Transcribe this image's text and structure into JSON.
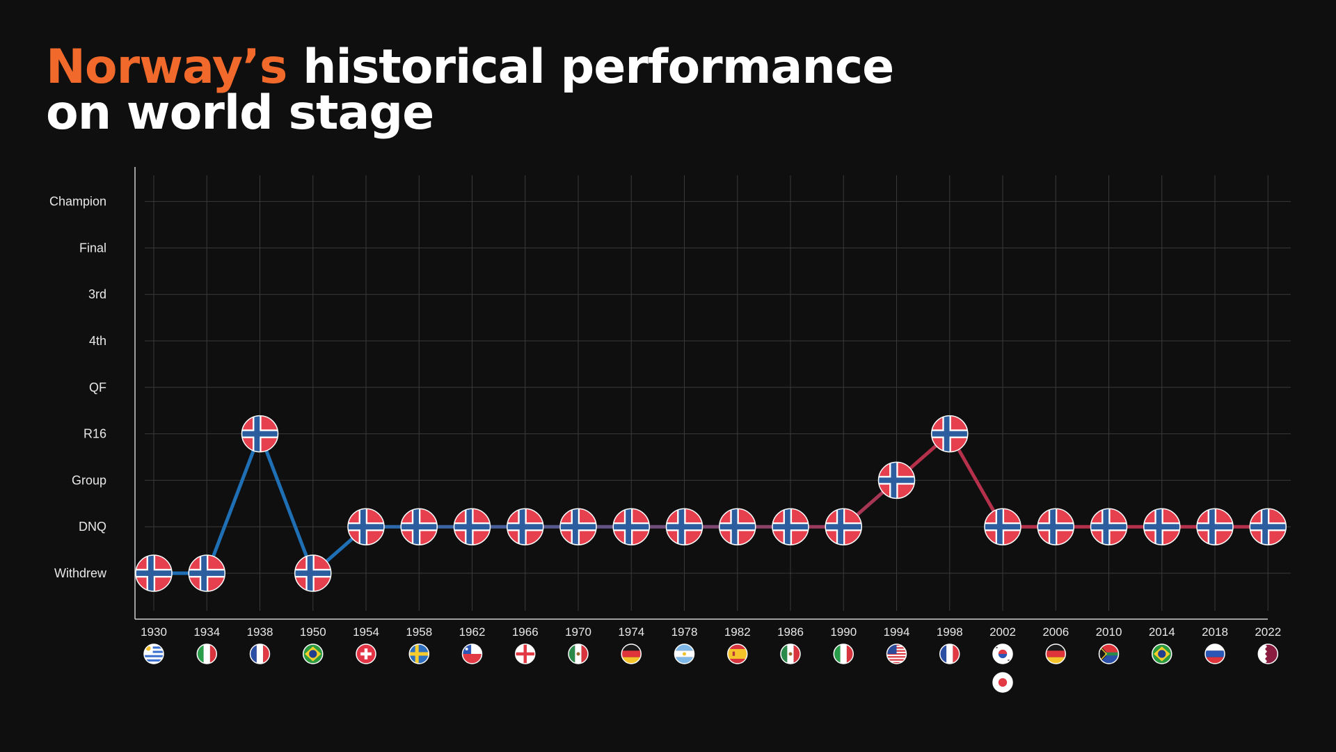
{
  "title": {
    "accent": "Norway’s",
    "rest": " historical performance",
    "line2": "on world stage"
  },
  "colors": {
    "background": "#0f0f10",
    "title_accent": "#f26a2b",
    "line_early": "#1f6fb5",
    "line_late": "#b5304a",
    "flag_red": "#e6404f",
    "flag_blue": "#2c5d9e",
    "grid": "#3a3a3a",
    "axis": "#cfcfcf"
  },
  "chart_data": {
    "type": "line",
    "categories": [
      "1930",
      "1934",
      "1938",
      "1950",
      "1954",
      "1958",
      "1962",
      "1966",
      "1970",
      "1974",
      "1978",
      "1982",
      "1986",
      "1990",
      "1994",
      "1998",
      "2002",
      "2006",
      "2010",
      "2014",
      "2018",
      "2022"
    ],
    "y_levels": [
      "Withdrew",
      "DNQ",
      "Group",
      "R16",
      "QF",
      "4th",
      "3rd",
      "Final",
      "Champion"
    ],
    "values": [
      "Withdrew",
      "Withdrew",
      "R16",
      "Withdrew",
      "DNQ",
      "DNQ",
      "DNQ",
      "DNQ",
      "DNQ",
      "DNQ",
      "DNQ",
      "DNQ",
      "DNQ",
      "DNQ",
      "Group",
      "R16",
      "DNQ",
      "DNQ",
      "DNQ",
      "DNQ",
      "DNQ",
      "DNQ"
    ],
    "host_flag_icons": [
      [
        "uruguay-flag-icon"
      ],
      [
        "italy-flag-icon"
      ],
      [
        "france-flag-icon"
      ],
      [
        "brazil-flag-icon"
      ],
      [
        "switzerland-flag-icon"
      ],
      [
        "sweden-flag-icon"
      ],
      [
        "chile-flag-icon"
      ],
      [
        "england-flag-icon"
      ],
      [
        "mexico-flag-icon"
      ],
      [
        "germany-flag-icon"
      ],
      [
        "argentina-flag-icon"
      ],
      [
        "spain-flag-icon"
      ],
      [
        "mexico-flag-icon"
      ],
      [
        "italy-flag-icon"
      ],
      [
        "usa-flag-icon"
      ],
      [
        "france-flag-icon"
      ],
      [
        "south-korea-flag-icon",
        "japan-flag-icon"
      ],
      [
        "germany-flag-icon"
      ],
      [
        "south-africa-flag-icon"
      ],
      [
        "brazil-flag-icon"
      ],
      [
        "russia-flag-icon"
      ],
      [
        "qatar-flag-icon"
      ]
    ],
    "marker_icon": "norway-flag-icon",
    "grid": true,
    "legend": "none"
  }
}
